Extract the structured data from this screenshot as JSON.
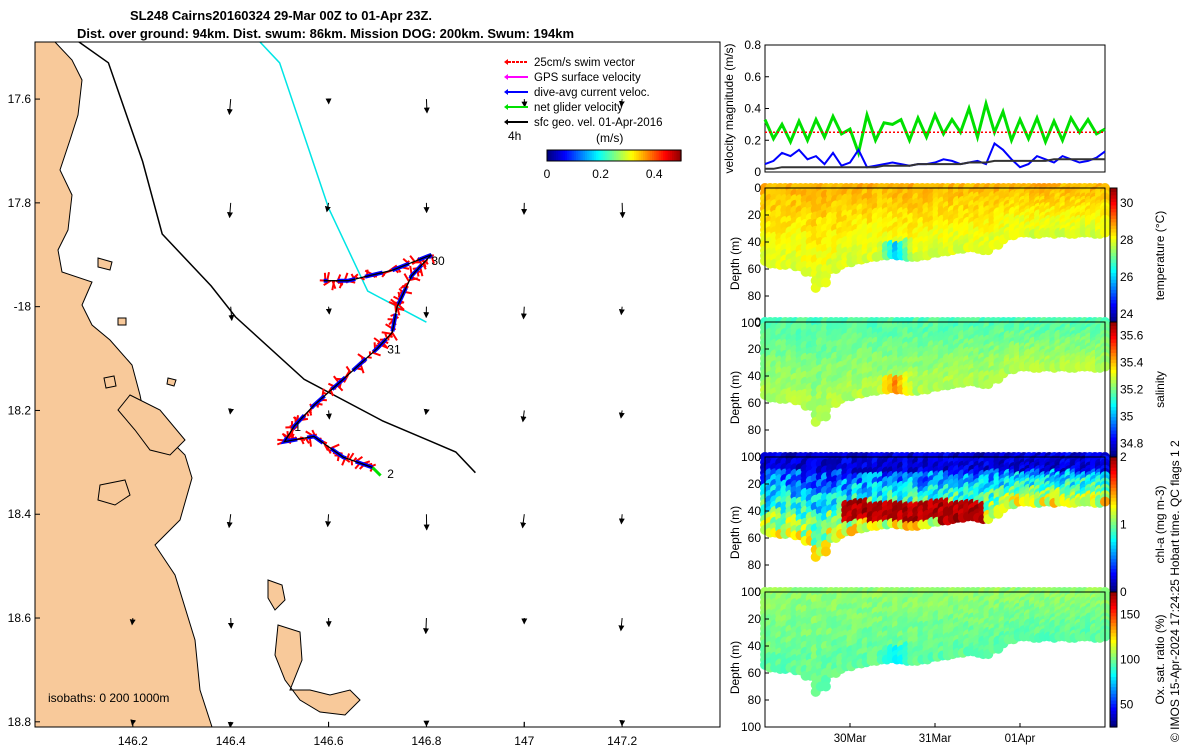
{
  "title": {
    "line1": "SL248 Cairns20160324 29-Mar 00Z to 01-Apr 23Z.",
    "line2": "Dist. over ground: 94km. Dist. swum: 86km. Mission DOG: 200km. Swum: 194km"
  },
  "footer": "© IMOS 15-Apr-2024 17:24:25 Hobart time. QC flags 1  2",
  "colors": {
    "land": "#f8c99a",
    "swim_vector": "#ff0000",
    "gps_velocity": "#ff00ff",
    "dive_avg_current": "#0000ff",
    "net_glider": "#00e000",
    "sfc_geo": "#000000",
    "isobath_cyan": "#00e5e5"
  },
  "chart_data": [
    {
      "type": "map",
      "xlim": [
        146.0,
        147.4
      ],
      "ylim": [
        -18.81,
        -17.49
      ],
      "xticks": [
        146.2,
        146.4,
        146.6,
        146.8,
        147,
        147.2
      ],
      "yticks": [
        -17.6,
        -17.8,
        -18,
        -18.2,
        -18.4,
        -18.6,
        -18.8
      ],
      "xtick_labels": [
        "146.2",
        "146.4",
        "146.6",
        "146.8",
        "147",
        "147.2"
      ],
      "ytick_labels": [
        "17.6",
        "17.8",
        "-18",
        "18.2",
        "18.4",
        "18.6",
        "18.8"
      ],
      "legend": [
        {
          "label": "25cm/s swim vector",
          "color": "#ff0000"
        },
        {
          "label": "GPS surface velocity",
          "color": "#ff00ff"
        },
        {
          "label": "dive-avg current veloc.",
          "color": "#0000ff"
        },
        {
          "label": "net glider velocity",
          "color": "#00e000"
        },
        {
          "label": "sfc geo. vel. 01-Apr-2016",
          "color": "#000000"
        }
      ],
      "legend_extra": "4h",
      "colorbar": {
        "label": "(m/s)",
        "range": [
          0,
          0.5
        ],
        "ticks": [
          "0",
          "0.2",
          "0.4"
        ]
      },
      "day_labels": [
        {
          "text": "30",
          "lon": 146.81,
          "lat": -17.92
        },
        {
          "text": "31",
          "lon": 146.72,
          "lat": -18.09
        },
        {
          "text": "1",
          "lon": 146.53,
          "lat": -18.24
        },
        {
          "text": "2",
          "lon": 146.72,
          "lat": -18.33
        }
      ],
      "isobaths_label": "isobaths: 0   200  1000m",
      "glider_track": [
        [
          146.69,
          -18.31
        ],
        [
          146.63,
          -18.29
        ],
        [
          146.57,
          -18.25
        ],
        [
          146.51,
          -18.26
        ],
        [
          146.53,
          -18.23
        ],
        [
          146.57,
          -18.19
        ],
        [
          146.63,
          -18.14
        ],
        [
          146.7,
          -18.08
        ],
        [
          146.73,
          -18.05
        ],
        [
          146.74,
          -18.0
        ],
        [
          146.75,
          -17.98
        ],
        [
          146.77,
          -17.94
        ],
        [
          146.81,
          -17.9
        ],
        [
          146.73,
          -17.93
        ],
        [
          146.64,
          -17.95
        ],
        [
          146.59,
          -17.95
        ]
      ],
      "isobath_1000m": [
        [
          146.0,
          -17.43
        ],
        [
          146.15,
          -17.53
        ],
        [
          146.22,
          -17.72
        ],
        [
          146.26,
          -17.86
        ],
        [
          146.36,
          -17.96
        ],
        [
          146.41,
          -18.02
        ],
        [
          146.55,
          -18.14
        ],
        [
          146.71,
          -18.22
        ],
        [
          146.81,
          -18.26
        ],
        [
          146.86,
          -18.28
        ],
        [
          146.9,
          -18.32
        ]
      ],
      "isobath_200m": [
        [
          146.4,
          -17.43
        ],
        [
          146.5,
          -17.53
        ],
        [
          146.55,
          -17.67
        ],
        [
          146.6,
          -17.81
        ],
        [
          146.68,
          -17.97
        ],
        [
          146.8,
          -18.03
        ]
      ]
    },
    {
      "type": "line",
      "ylabel": "velocity magnitude (m/s)",
      "ylim": [
        0,
        0.8
      ],
      "yticks": [
        0,
        0.2,
        0.4,
        0.6,
        0.8
      ],
      "x_days": [
        0,
        0.1,
        0.2,
        0.3,
        0.4,
        0.5,
        0.6,
        0.7,
        0.8,
        0.9,
        1.0,
        1.1,
        1.2,
        1.3,
        1.4,
        1.5,
        1.6,
        1.7,
        1.8,
        1.9,
        2.0,
        2.1,
        2.2,
        2.3,
        2.4,
        2.5,
        2.6,
        2.7,
        2.8,
        2.9,
        3.0,
        3.1,
        3.2,
        3.3,
        3.4,
        3.5,
        3.6,
        3.7,
        3.8,
        3.9,
        4.0
      ],
      "xticks": [
        {
          "label": "30Mar",
          "day": 1.0
        },
        {
          "label": "31Mar",
          "day": 2.0
        },
        {
          "label": "01Apr",
          "day": 3.0
        }
      ],
      "series": [
        {
          "color": "#00e000",
          "values": [
            0.33,
            0.21,
            0.3,
            0.19,
            0.32,
            0.2,
            0.33,
            0.22,
            0.35,
            0.24,
            0.27,
            0.12,
            0.36,
            0.2,
            0.31,
            0.3,
            0.33,
            0.2,
            0.34,
            0.22,
            0.36,
            0.24,
            0.33,
            0.25,
            0.4,
            0.22,
            0.43,
            0.25,
            0.38,
            0.2,
            0.33,
            0.21,
            0.34,
            0.19,
            0.32,
            0.2,
            0.34,
            0.25,
            0.33,
            0.24,
            0.27
          ]
        },
        {
          "color": "#0000ff",
          "values": [
            0.05,
            0.07,
            0.12,
            0.1,
            0.14,
            0.08,
            0.1,
            0.05,
            0.12,
            0.04,
            0.06,
            0.14,
            0.03,
            0.04,
            0.05,
            0.06,
            0.05,
            0.04,
            0.05,
            0.05,
            0.06,
            0.08,
            0.07,
            0.05,
            0.06,
            0.07,
            0.05,
            0.18,
            0.14,
            0.08,
            0.03,
            0.05,
            0.1,
            0.08,
            0.06,
            0.1,
            0.08,
            0.06,
            0.07,
            0.09,
            0.13
          ]
        },
        {
          "color": "#333333",
          "values": [
            0.02,
            0.02,
            0.03,
            0.03,
            0.03,
            0.03,
            0.03,
            0.03,
            0.03,
            0.03,
            0.03,
            0.03,
            0.03,
            0.03,
            0.04,
            0.04,
            0.04,
            0.04,
            0.05,
            0.05,
            0.05,
            0.05,
            0.05,
            0.05,
            0.06,
            0.06,
            0.06,
            0.07,
            0.07,
            0.07,
            0.07,
            0.07,
            0.07,
            0.07,
            0.08,
            0.08,
            0.08,
            0.08,
            0.08,
            0.08,
            0.08
          ]
        },
        {
          "color": "#ff0000",
          "values": [
            0.25,
            0.25,
            0.25,
            0.25,
            0.25,
            0.25,
            0.25,
            0.25,
            0.25,
            0.25,
            0.25,
            0.25,
            0.25,
            0.25,
            0.25,
            0.25,
            0.25,
            0.25,
            0.25,
            0.25,
            0.25,
            0.25,
            0.25,
            0.25,
            0.25,
            0.25,
            0.25,
            0.25,
            0.25,
            0.25,
            0.25,
            0.25,
            0.25,
            0.25,
            0.25,
            0.25,
            0.25,
            0.25,
            0.25,
            0.25,
            0.25
          ]
        }
      ]
    },
    {
      "type": "heatmap",
      "ylabel": "Depth (m)",
      "variable_label": "temperature (°C)",
      "ylim_depth": [
        0,
        100
      ],
      "yticks": [
        0,
        20,
        40,
        60,
        80,
        100
      ],
      "colorbar_range": [
        23.5,
        30.8
      ],
      "colorbar_ticks": [
        24,
        26,
        28,
        30
      ],
      "bottom_depth": [
        54,
        56,
        57,
        56,
        58,
        62,
        74,
        70,
        60,
        57,
        55,
        53,
        52,
        51,
        50,
        49,
        50,
        51,
        51,
        50,
        48,
        47,
        46,
        45,
        44,
        45,
        46,
        42,
        38,
        35,
        33,
        33,
        34,
        33,
        34,
        33,
        34,
        33,
        33,
        34,
        33
      ],
      "surface_value": 28.6,
      "bottom_value": 27.8,
      "anomaly": {
        "day": 1.55,
        "value": 25.8
      }
    },
    {
      "type": "heatmap",
      "ylabel": "Depth (m)",
      "variable_label": "salinity",
      "ylim_depth": [
        0,
        100
      ],
      "yticks": [
        0,
        20,
        40,
        60,
        80,
        100
      ],
      "colorbar_range": [
        34.7,
        35.7
      ],
      "colorbar_ticks": [
        34.8,
        35,
        35.2,
        35.4,
        35.6
      ],
      "bottom_depth": [
        54,
        56,
        57,
        56,
        58,
        62,
        74,
        70,
        60,
        57,
        55,
        53,
        52,
        51,
        50,
        49,
        50,
        51,
        51,
        50,
        48,
        47,
        46,
        45,
        44,
        45,
        46,
        42,
        38,
        35,
        33,
        33,
        34,
        33,
        34,
        33,
        34,
        33,
        33,
        34,
        33
      ],
      "surface_value": 35.15,
      "bottom_value": 35.25,
      "anomaly": {
        "day": 1.55,
        "value": 35.45
      }
    },
    {
      "type": "heatmap",
      "ylabel": "Depth (m)",
      "variable_label": "chl-a (mg m-3)",
      "ylim_depth": [
        0,
        100
      ],
      "yticks": [
        0,
        20,
        40,
        60,
        80,
        100
      ],
      "colorbar_range": [
        0,
        2
      ],
      "colorbar_ticks": [
        0,
        1,
        2
      ],
      "bottom_depth": [
        54,
        56,
        57,
        56,
        58,
        62,
        74,
        70,
        60,
        57,
        55,
        53,
        52,
        51,
        50,
        49,
        50,
        51,
        51,
        50,
        48,
        47,
        46,
        45,
        44,
        45,
        46,
        42,
        38,
        35,
        33,
        33,
        34,
        33,
        34,
        33,
        34,
        33,
        33,
        34,
        33
      ],
      "surface_value": 0.15,
      "bottom_value": 1.2,
      "anomaly": {
        "day": 1.9,
        "value": 2.0
      }
    },
    {
      "type": "heatmap",
      "ylabel": "Depth (m)",
      "variable_label": "Ox. sat. ratio (%)",
      "ylim_depth": [
        0,
        100
      ],
      "yticks": [
        0,
        20,
        40,
        60,
        80,
        100
      ],
      "colorbar_range": [
        25,
        175
      ],
      "colorbar_ticks": [
        50,
        100,
        150
      ],
      "bottom_depth": [
        54,
        56,
        57,
        56,
        58,
        62,
        74,
        70,
        60,
        57,
        55,
        53,
        52,
        51,
        50,
        49,
        50,
        51,
        51,
        50,
        48,
        47,
        46,
        45,
        44,
        45,
        46,
        42,
        38,
        35,
        33,
        33,
        34,
        33,
        34,
        33,
        34,
        33,
        33,
        34,
        33
      ],
      "surface_value": 103,
      "bottom_value": 95,
      "anomaly": {
        "day": 1.55,
        "value": 80
      }
    }
  ]
}
